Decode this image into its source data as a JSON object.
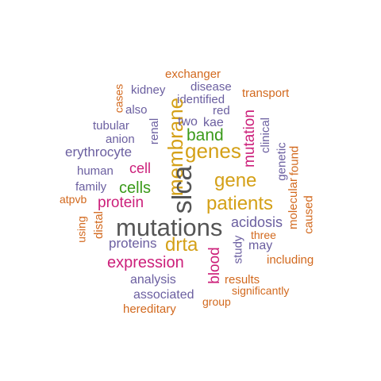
{
  "palette": {
    "dark_gray": "#555555",
    "orange": "#d4a017",
    "magenta": "#cc1f7a",
    "green": "#3a9a1a",
    "purple": "#6b5fa0",
    "burnt_orange": "#d2691e"
  },
  "words": {
    "slca": "slca",
    "mutations": "mutations",
    "membrane": "membrane",
    "genes": "genes",
    "patients": "patients",
    "gene": "gene",
    "drta": "drta",
    "band": "band",
    "cells": "cells",
    "protein": "protein",
    "expression": "expression",
    "mutation": "mutation",
    "blood": "blood",
    "cell": "cell",
    "erythrocyte": "erythrocyte",
    "renal": "renal",
    "acidosis": "acidosis",
    "proteins": "proteins",
    "identified": "identified",
    "disease": "disease",
    "kidney": "kidney",
    "exchanger": "exchanger",
    "transport": "transport",
    "cases": "cases",
    "also": "also",
    "red": "red",
    "two": "two",
    "kae": "kae",
    "tubular": "tubular",
    "anion": "anion",
    "clinical": "clinical",
    "genetic": "genetic",
    "found": "found",
    "human": "human",
    "family": "family",
    "atpvb": "atpvb",
    "using": "using",
    "distal": "distal",
    "molecular": "molecular",
    "caused": "caused",
    "three": "three",
    "may": "may",
    "study": "study",
    "including": "including",
    "analysis": "analysis",
    "results": "results",
    "associated": "associated",
    "significantly": "significantly",
    "group": "group",
    "hereditary": "hereditary"
  }
}
